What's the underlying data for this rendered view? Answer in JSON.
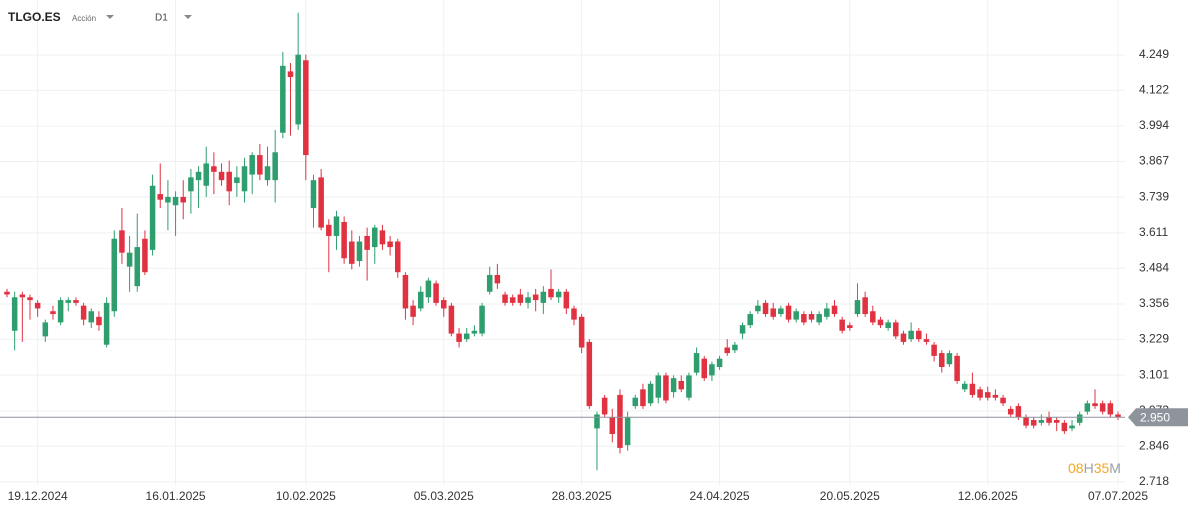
{
  "header": {
    "symbol": "TLGO.ES",
    "asset_type": "Acción",
    "timeframe": "D1"
  },
  "chart_data": {
    "type": "candlestick",
    "categories": [
      null,
      null,
      null,
      null,
      "19.12.2024",
      null,
      null,
      null,
      null,
      null,
      null,
      null,
      null,
      null,
      null,
      null,
      null,
      null,
      null,
      null,
      null,
      null,
      "16.01.2025",
      null,
      null,
      null,
      null,
      null,
      null,
      null,
      null,
      null,
      null,
      null,
      null,
      null,
      null,
      null,
      null,
      "10.02.2025",
      null,
      null,
      null,
      null,
      null,
      null,
      null,
      null,
      null,
      null,
      null,
      null,
      null,
      null,
      null,
      null,
      null,
      "05.03.2025",
      null,
      null,
      null,
      null,
      null,
      null,
      null,
      null,
      null,
      null,
      null,
      null,
      null,
      null,
      null,
      null,
      null,
      "28.03.2025",
      null,
      null,
      null,
      null,
      null,
      null,
      null,
      null,
      null,
      null,
      null,
      null,
      null,
      null,
      null,
      null,
      null,
      "24.04.2025",
      null,
      null,
      null,
      null,
      null,
      null,
      null,
      null,
      null,
      null,
      null,
      null,
      null,
      null,
      null,
      null,
      "20.05.2025",
      null,
      null,
      null,
      null,
      null,
      null,
      null,
      null,
      null,
      null,
      null,
      null,
      null,
      null,
      null,
      null,
      null,
      "12.06.2025",
      null,
      null,
      null,
      null,
      null,
      null,
      null,
      null,
      null,
      null,
      null,
      null,
      null,
      null,
      null,
      null,
      "07.07.2025"
    ],
    "ohlc": [
      [
        3.4,
        3.41,
        3.38,
        3.39
      ],
      [
        3.26,
        3.4,
        3.19,
        3.38
      ],
      [
        3.39,
        3.4,
        3.22,
        3.38
      ],
      [
        3.38,
        3.39,
        3.3,
        3.37
      ],
      [
        3.36,
        3.37,
        3.31,
        3.34
      ],
      [
        3.24,
        3.3,
        3.22,
        3.29
      ],
      [
        3.33,
        3.35,
        3.3,
        3.32
      ],
      [
        3.29,
        3.38,
        3.28,
        3.37
      ],
      [
        3.36,
        3.38,
        3.33,
        3.37
      ],
      [
        3.37,
        3.38,
        3.35,
        3.36
      ],
      [
        3.35,
        3.36,
        3.28,
        3.3
      ],
      [
        3.29,
        3.34,
        3.27,
        3.33
      ],
      [
        3.31,
        3.33,
        3.26,
        3.28
      ],
      [
        3.21,
        3.38,
        3.2,
        3.36
      ],
      [
        3.33,
        3.62,
        3.31,
        3.59
      ],
      [
        3.62,
        3.7,
        3.5,
        3.54
      ],
      [
        3.49,
        3.6,
        3.4,
        3.54
      ],
      [
        3.42,
        3.68,
        3.4,
        3.56
      ],
      [
        3.59,
        3.62,
        3.46,
        3.47
      ],
      [
        3.55,
        3.82,
        3.53,
        3.78
      ],
      [
        3.75,
        3.86,
        3.7,
        3.73
      ],
      [
        3.72,
        3.8,
        3.62,
        3.74
      ],
      [
        3.71,
        3.76,
        3.6,
        3.74
      ],
      [
        3.74,
        3.8,
        3.66,
        3.72
      ],
      [
        3.76,
        3.84,
        3.68,
        3.81
      ],
      [
        3.8,
        3.85,
        3.7,
        3.83
      ],
      [
        3.78,
        3.92,
        3.74,
        3.86
      ],
      [
        3.85,
        3.9,
        3.75,
        3.83
      ],
      [
        3.83,
        3.86,
        3.78,
        3.8
      ],
      [
        3.83,
        3.87,
        3.71,
        3.76
      ],
      [
        3.79,
        3.85,
        3.74,
        3.81
      ],
      [
        3.76,
        3.88,
        3.72,
        3.85
      ],
      [
        3.82,
        3.9,
        3.75,
        3.89
      ],
      [
        3.89,
        3.93,
        3.8,
        3.82
      ],
      [
        3.8,
        3.92,
        3.78,
        3.85
      ],
      [
        3.8,
        3.98,
        3.72,
        3.9
      ],
      [
        3.97,
        4.26,
        3.95,
        4.21
      ],
      [
        4.19,
        4.22,
        3.96,
        4.17
      ],
      [
        4.0,
        4.4,
        3.98,
        4.25
      ],
      [
        4.23,
        4.25,
        3.8,
        3.89
      ],
      [
        3.7,
        3.82,
        3.63,
        3.8
      ],
      [
        3.81,
        3.84,
        3.62,
        3.63
      ],
      [
        3.64,
        3.66,
        3.47,
        3.6
      ],
      [
        3.6,
        3.69,
        3.55,
        3.67
      ],
      [
        3.65,
        3.67,
        3.5,
        3.52
      ],
      [
        3.58,
        3.62,
        3.48,
        3.5
      ],
      [
        3.51,
        3.6,
        3.49,
        3.58
      ],
      [
        3.6,
        3.63,
        3.44,
        3.55
      ],
      [
        3.56,
        3.64,
        3.5,
        3.63
      ],
      [
        3.62,
        3.64,
        3.55,
        3.57
      ],
      [
        3.58,
        3.6,
        3.53,
        3.56
      ],
      [
        3.58,
        3.59,
        3.45,
        3.47
      ],
      [
        3.46,
        3.47,
        3.3,
        3.34
      ],
      [
        3.35,
        3.37,
        3.28,
        3.31
      ],
      [
        3.34,
        3.42,
        3.33,
        3.4
      ],
      [
        3.38,
        3.45,
        3.36,
        3.44
      ],
      [
        3.43,
        3.44,
        3.35,
        3.36
      ],
      [
        3.37,
        3.38,
        3.31,
        3.34
      ],
      [
        3.35,
        3.36,
        3.24,
        3.25
      ],
      [
        3.25,
        3.27,
        3.2,
        3.22
      ],
      [
        3.23,
        3.27,
        3.22,
        3.25
      ],
      [
        3.25,
        3.28,
        3.24,
        3.26
      ],
      [
        3.25,
        3.36,
        3.24,
        3.35
      ],
      [
        3.4,
        3.49,
        3.39,
        3.46
      ],
      [
        3.46,
        3.5,
        3.41,
        3.43
      ],
      [
        3.39,
        3.4,
        3.35,
        3.36
      ],
      [
        3.38,
        3.39,
        3.35,
        3.36
      ],
      [
        3.39,
        3.41,
        3.35,
        3.36
      ],
      [
        3.36,
        3.4,
        3.34,
        3.38
      ],
      [
        3.39,
        3.41,
        3.33,
        3.37
      ],
      [
        3.36,
        3.42,
        3.32,
        3.4
      ],
      [
        3.41,
        3.48,
        3.37,
        3.38
      ],
      [
        3.38,
        3.41,
        3.36,
        3.4
      ],
      [
        3.4,
        3.41,
        3.32,
        3.34
      ],
      [
        3.34,
        3.35,
        3.28,
        3.3
      ],
      [
        3.31,
        3.32,
        3.18,
        3.2
      ],
      [
        3.22,
        3.23,
        2.98,
        2.99
      ],
      [
        2.91,
        2.97,
        2.76,
        2.96
      ],
      [
        3.02,
        3.03,
        2.95,
        2.96
      ],
      [
        2.95,
        2.98,
        2.86,
        2.89
      ],
      [
        3.03,
        3.05,
        2.82,
        2.84
      ],
      [
        2.85,
        2.97,
        2.83,
        2.95
      ],
      [
        2.99,
        3.03,
        2.98,
        3.02
      ],
      [
        3.05,
        3.07,
        2.98,
        2.99
      ],
      [
        3.0,
        3.08,
        2.99,
        3.07
      ],
      [
        3.02,
        3.11,
        3.0,
        3.1
      ],
      [
        3.1,
        3.11,
        3.0,
        3.01
      ],
      [
        3.04,
        3.1,
        3.02,
        3.09
      ],
      [
        3.08,
        3.1,
        3.04,
        3.05
      ],
      [
        3.02,
        3.11,
        3.01,
        3.1
      ],
      [
        3.11,
        3.2,
        3.1,
        3.18
      ],
      [
        3.16,
        3.17,
        3.08,
        3.09
      ],
      [
        3.1,
        3.15,
        3.08,
        3.14
      ],
      [
        3.13,
        3.17,
        3.12,
        3.16
      ],
      [
        3.2,
        3.23,
        3.17,
        3.18
      ],
      [
        3.19,
        3.22,
        3.18,
        3.21
      ],
      [
        3.25,
        3.29,
        3.23,
        3.28
      ],
      [
        3.28,
        3.33,
        3.27,
        3.32
      ],
      [
        3.33,
        3.37,
        3.32,
        3.35
      ],
      [
        3.36,
        3.37,
        3.31,
        3.32
      ],
      [
        3.34,
        3.36,
        3.3,
        3.31
      ],
      [
        3.32,
        3.35,
        3.31,
        3.34
      ],
      [
        3.35,
        3.36,
        3.29,
        3.3
      ],
      [
        3.3,
        3.34,
        3.29,
        3.33
      ],
      [
        3.32,
        3.33,
        3.28,
        3.29
      ],
      [
        3.32,
        3.33,
        3.29,
        3.3
      ],
      [
        3.29,
        3.33,
        3.28,
        3.32
      ],
      [
        3.31,
        3.36,
        3.3,
        3.34
      ],
      [
        3.35,
        3.37,
        3.31,
        3.32
      ],
      [
        3.3,
        3.31,
        3.25,
        3.26
      ],
      [
        3.28,
        3.29,
        3.26,
        3.27
      ],
      [
        3.32,
        3.43,
        3.31,
        3.37
      ],
      [
        3.38,
        3.4,
        3.31,
        3.32
      ],
      [
        3.33,
        3.35,
        3.28,
        3.29
      ],
      [
        3.3,
        3.31,
        3.27,
        3.28
      ],
      [
        3.27,
        3.3,
        3.26,
        3.29
      ],
      [
        3.29,
        3.3,
        3.23,
        3.24
      ],
      [
        3.25,
        3.26,
        3.21,
        3.22
      ],
      [
        3.23,
        3.29,
        3.22,
        3.26
      ],
      [
        3.26,
        3.27,
        3.22,
        3.23
      ],
      [
        3.23,
        3.25,
        3.21,
        3.22
      ],
      [
        3.21,
        3.22,
        3.15,
        3.17
      ],
      [
        3.18,
        3.19,
        3.11,
        3.13
      ],
      [
        3.14,
        3.19,
        3.13,
        3.18
      ],
      [
        3.17,
        3.18,
        3.07,
        3.08
      ],
      [
        3.05,
        3.08,
        3.04,
        3.07
      ],
      [
        3.07,
        3.11,
        3.02,
        3.03
      ],
      [
        3.05,
        3.06,
        3.01,
        3.02
      ],
      [
        3.04,
        3.06,
        3.01,
        3.02
      ],
      [
        3.03,
        3.05,
        3.01,
        3.02
      ],
      [
        3.02,
        3.03,
        2.99,
        3.0
      ],
      [
        2.98,
        2.99,
        2.95,
        2.96
      ],
      [
        2.99,
        3.0,
        2.94,
        2.95
      ],
      [
        2.95,
        2.96,
        2.91,
        2.92
      ],
      [
        2.94,
        2.95,
        2.91,
        2.92
      ],
      [
        2.93,
        2.96,
        2.92,
        2.94
      ],
      [
        2.95,
        2.97,
        2.92,
        2.93
      ],
      [
        2.94,
        2.95,
        2.9,
        2.93
      ],
      [
        2.93,
        2.94,
        2.89,
        2.9
      ],
      [
        2.91,
        2.94,
        2.9,
        2.92
      ],
      [
        2.93,
        2.97,
        2.92,
        2.96
      ],
      [
        2.97,
        3.01,
        2.96,
        3.0
      ],
      [
        3.0,
        3.05,
        2.98,
        2.99
      ],
      [
        3.0,
        3.01,
        2.96,
        2.97
      ],
      [
        3.0,
        3.01,
        2.95,
        2.96
      ],
      [
        2.96,
        2.97,
        2.94,
        2.95
      ]
    ],
    "up_color": "#2f9e6e",
    "down_color": "#e03241",
    "ylim": [
      2.707,
      4.446
    ],
    "yticks": [
      2.718,
      2.846,
      2.973,
      3.101,
      3.229,
      3.356,
      3.484,
      3.611,
      3.739,
      3.867,
      3.994,
      4.122,
      4.249
    ],
    "grid": true,
    "last_price": 2.95,
    "last_price_label": "2.950",
    "countdown": {
      "hours": "08",
      "hours_unit": "H",
      "minutes": "35",
      "minutes_unit": "M"
    }
  }
}
